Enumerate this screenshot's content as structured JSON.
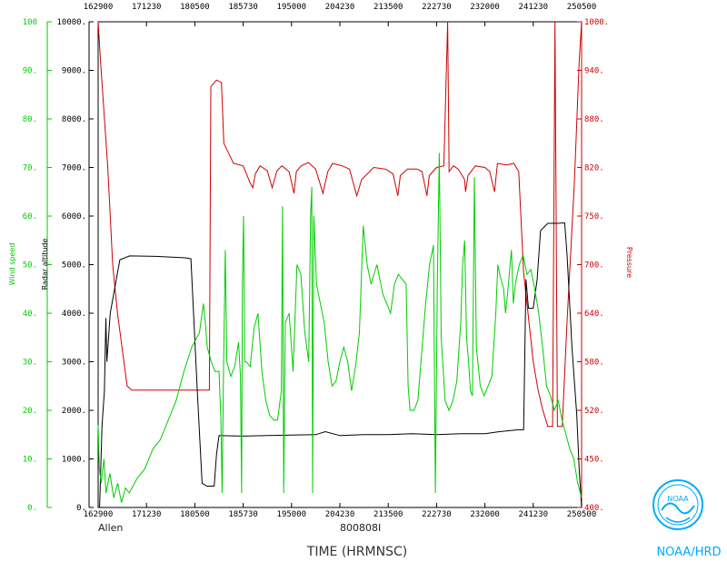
{
  "chart_data": {
    "type": "line",
    "xlabel": "TIME (HRMNSC)",
    "storm_name": "Allen",
    "flight_id": "800808I",
    "logo_text": "NOAA/HRD",
    "x_ticks": [
      "162900",
      "171230",
      "180500",
      "185730",
      "195000",
      "204230",
      "213500",
      "222730",
      "232000",
      "241230",
      "250500"
    ],
    "left_green_axis": {
      "label": "Wind speed",
      "ticks": [
        "0.",
        "10.",
        "20.",
        "30.",
        "40.",
        "50.",
        "60.",
        "70.",
        "80.",
        "90.",
        "100"
      ],
      "range": [
        0,
        100
      ],
      "color": "#00cc00"
    },
    "left_black_axis": {
      "label": "Radar altitude",
      "ticks": [
        "0.",
        "1000.",
        "2000.",
        "3000.",
        "4000.",
        "5000.",
        "6000.",
        "7000.",
        "8000.",
        "9000.",
        "10000."
      ],
      "range": [
        0,
        10000
      ],
      "color": "#000000"
    },
    "right_axis": {
      "label": "Pressure",
      "ticks": [
        "400.",
        "450.",
        "520.",
        "580.",
        "640.",
        "700.",
        "750.",
        "820.",
        "880.",
        "940.",
        "1000."
      ],
      "range": [
        400,
        1000
      ],
      "color": "#cc0000"
    },
    "series": [
      {
        "name": "Pressure",
        "color": "#cc0000",
        "points": [
          [
            0,
            1000
          ],
          [
            0.5,
            950
          ],
          [
            2,
            820
          ],
          [
            3,
            700
          ],
          [
            4,
            640
          ],
          [
            6,
            550
          ],
          [
            7,
            545
          ],
          [
            20,
            545
          ],
          [
            23,
            545
          ],
          [
            23.3,
            920
          ],
          [
            24.5,
            928
          ],
          [
            25.5,
            925
          ],
          [
            26,
            850
          ],
          [
            28,
            825
          ],
          [
            30,
            822
          ],
          [
            31.5,
            800
          ],
          [
            32,
            795
          ],
          [
            32.5,
            812
          ],
          [
            33.5,
            822
          ],
          [
            35,
            816
          ],
          [
            36,
            795
          ],
          [
            37,
            816
          ],
          [
            38,
            822
          ],
          [
            39.5,
            815
          ],
          [
            40.5,
            788
          ],
          [
            41,
            815
          ],
          [
            42,
            822
          ],
          [
            43.5,
            826
          ],
          [
            45,
            818
          ],
          [
            46.5,
            788
          ],
          [
            47.5,
            815
          ],
          [
            48.5,
            825
          ],
          [
            50.5,
            822
          ],
          [
            52,
            818
          ],
          [
            53.5,
            785
          ],
          [
            54.5,
            805
          ],
          [
            57,
            820
          ],
          [
            59.5,
            818
          ],
          [
            61,
            812
          ],
          [
            62,
            785
          ],
          [
            62.5,
            810
          ],
          [
            64,
            818
          ],
          [
            66,
            818
          ],
          [
            67,
            815
          ],
          [
            68,
            785
          ],
          [
            68.5,
            810
          ],
          [
            70,
            820
          ],
          [
            71.5,
            822
          ],
          [
            72.3,
            1000
          ],
          [
            72.6,
            815
          ],
          [
            73.5,
            822
          ],
          [
            74.5,
            818
          ],
          [
            75.8,
            805
          ],
          [
            76,
            790
          ],
          [
            76.5,
            810
          ],
          [
            78,
            822
          ],
          [
            80,
            820
          ],
          [
            81,
            815
          ],
          [
            82,
            790
          ],
          [
            82.6,
            825
          ],
          [
            84.5,
            823
          ],
          [
            86,
            825
          ],
          [
            87,
            815
          ],
          [
            88,
            690
          ],
          [
            90,
            580
          ],
          [
            91,
            545
          ],
          [
            92,
            520
          ],
          [
            93,
            500
          ],
          [
            94,
            500
          ],
          [
            94.5,
            1000
          ],
          [
            95,
            500
          ],
          [
            96,
            500
          ],
          [
            97,
            630
          ],
          [
            98.5,
            800
          ],
          [
            99.5,
            950
          ],
          [
            100,
            1000
          ]
        ]
      },
      {
        "name": "Radar altitude",
        "color": "#000000",
        "points": [
          [
            0.3,
            0
          ],
          [
            0.8,
            1700
          ],
          [
            1.3,
            2400
          ],
          [
            1.6,
            3900
          ],
          [
            1.8,
            3000
          ],
          [
            2.5,
            4000
          ],
          [
            4.5,
            5100
          ],
          [
            6.5,
            5180
          ],
          [
            12,
            5170
          ],
          [
            18,
            5140
          ],
          [
            19.2,
            5120
          ],
          [
            20.5,
            2400
          ],
          [
            21.5,
            500
          ],
          [
            22.5,
            440
          ],
          [
            24,
            440
          ],
          [
            24.5,
            1100
          ],
          [
            25,
            1480
          ],
          [
            30,
            1470
          ],
          [
            35,
            1480
          ],
          [
            40,
            1490
          ],
          [
            45,
            1500
          ],
          [
            47,
            1560
          ],
          [
            50,
            1480
          ],
          [
            55,
            1500
          ],
          [
            60,
            1500
          ],
          [
            65,
            1520
          ],
          [
            70,
            1500
          ],
          [
            75,
            1520
          ],
          [
            80,
            1520
          ],
          [
            83,
            1560
          ],
          [
            87,
            1600
          ],
          [
            88,
            1600
          ],
          [
            88.5,
            4700
          ],
          [
            89,
            4100
          ],
          [
            90,
            4100
          ],
          [
            90.8,
            4700
          ],
          [
            91.5,
            5700
          ],
          [
            93,
            5850
          ],
          [
            95,
            5850
          ],
          [
            96.5,
            5860
          ],
          [
            97,
            5200
          ],
          [
            98,
            3300
          ],
          [
            99,
            1900
          ],
          [
            99.5,
            800
          ],
          [
            100,
            0
          ]
        ]
      },
      {
        "name": "Wind speed",
        "color": "#00cc00",
        "points": [
          [
            0,
            17
          ],
          [
            0.3,
            8
          ],
          [
            0.8,
            5
          ],
          [
            1.5,
            10
          ],
          [
            2,
            3
          ],
          [
            3,
            7
          ],
          [
            4,
            2
          ],
          [
            5,
            5
          ],
          [
            6,
            1
          ],
          [
            7,
            4
          ],
          [
            8,
            3
          ],
          [
            10,
            6
          ],
          [
            12,
            8
          ],
          [
            14,
            12
          ],
          [
            16,
            14
          ],
          [
            18,
            18
          ],
          [
            20,
            22
          ],
          [
            22,
            28
          ],
          [
            24,
            33
          ],
          [
            26,
            36
          ],
          [
            27,
            42
          ],
          [
            27.5,
            38
          ],
          [
            28,
            33
          ],
          [
            29,
            30
          ],
          [
            30,
            28
          ],
          [
            31,
            28
          ],
          [
            31.5,
            18
          ],
          [
            31.8,
            3
          ],
          [
            32.2,
            30
          ],
          [
            32.6,
            53
          ],
          [
            33,
            30
          ],
          [
            34,
            27
          ],
          [
            35,
            29
          ],
          [
            36,
            34
          ],
          [
            36.5,
            27
          ],
          [
            36.8,
            3
          ],
          [
            37,
            46
          ],
          [
            37.3,
            60
          ],
          [
            37.6,
            30
          ],
          [
            38,
            30
          ],
          [
            39,
            29
          ],
          [
            40,
            37
          ],
          [
            41,
            40
          ],
          [
            42,
            28
          ],
          [
            43,
            22
          ],
          [
            44,
            19
          ],
          [
            45,
            18
          ],
          [
            46,
            18
          ],
          [
            47,
            24
          ],
          [
            47.3,
            62
          ],
          [
            47.6,
            3
          ],
          [
            48,
            38
          ],
          [
            49,
            40
          ],
          [
            50,
            28
          ],
          [
            51,
            50
          ],
          [
            52,
            48
          ],
          [
            53,
            36
          ],
          [
            54,
            30
          ],
          [
            54.5,
            60
          ],
          [
            54.8,
            66
          ],
          [
            55,
            3
          ],
          [
            55.3,
            60
          ],
          [
            56,
            46
          ],
          [
            57,
            42
          ],
          [
            58,
            38
          ],
          [
            59,
            30
          ],
          [
            60,
            25
          ],
          [
            61,
            26
          ],
          [
            62,
            30
          ],
          [
            63,
            33
          ],
          [
            64,
            30
          ],
          [
            65,
            24
          ],
          [
            66,
            29
          ],
          [
            67,
            36
          ],
          [
            68,
            58
          ],
          [
            68.5,
            54
          ],
          [
            69,
            50
          ],
          [
            70,
            46
          ],
          [
            71.5,
            50
          ],
          [
            72,
            48
          ],
          [
            73,
            44
          ],
          [
            75,
            40
          ],
          [
            76,
            46
          ],
          [
            77,
            48
          ],
          [
            78,
            47
          ],
          [
            79,
            46
          ],
          [
            79.5,
            25
          ],
          [
            80,
            20
          ],
          [
            81,
            20
          ],
          [
            82,
            22
          ],
          [
            83,
            32
          ],
          [
            84,
            42
          ],
          [
            85,
            50
          ],
          [
            86,
            54
          ],
          [
            86.5,
            3
          ],
          [
            87,
            47
          ],
          [
            87.5,
            73
          ],
          [
            88,
            35
          ],
          [
            89,
            22
          ],
          [
            90,
            20
          ],
          [
            91,
            22
          ],
          [
            92,
            26
          ],
          [
            93,
            38
          ],
          [
            93.5,
            50
          ],
          [
            94,
            55
          ],
          [
            94.5,
            35
          ],
          [
            95,
            30
          ],
          [
            95.5,
            24
          ],
          [
            96,
            23
          ],
          [
            96.5,
            68
          ],
          [
            97,
            33
          ],
          [
            98,
            25
          ],
          [
            99,
            23
          ],
          [
            100,
            25
          ],
          [
            101,
            27
          ],
          [
            102,
            40
          ],
          [
            102.5,
            50
          ],
          [
            103,
            48
          ],
          [
            104,
            45
          ],
          [
            104.5,
            40
          ],
          [
            105,
            44
          ],
          [
            106,
            53
          ],
          [
            106.5,
            42
          ],
          [
            107,
            46
          ],
          [
            108,
            50
          ],
          [
            109,
            52
          ],
          [
            110,
            48
          ],
          [
            111,
            49
          ],
          [
            112,
            45
          ],
          [
            113,
            40
          ],
          [
            114,
            33
          ],
          [
            115,
            25
          ],
          [
            116,
            23
          ],
          [
            117,
            20
          ],
          [
            118,
            22
          ],
          [
            119,
            18
          ],
          [
            120,
            15
          ],
          [
            121,
            12
          ],
          [
            122,
            10
          ],
          [
            123,
            5
          ],
          [
            124,
            2
          ]
        ]
      }
    ]
  }
}
